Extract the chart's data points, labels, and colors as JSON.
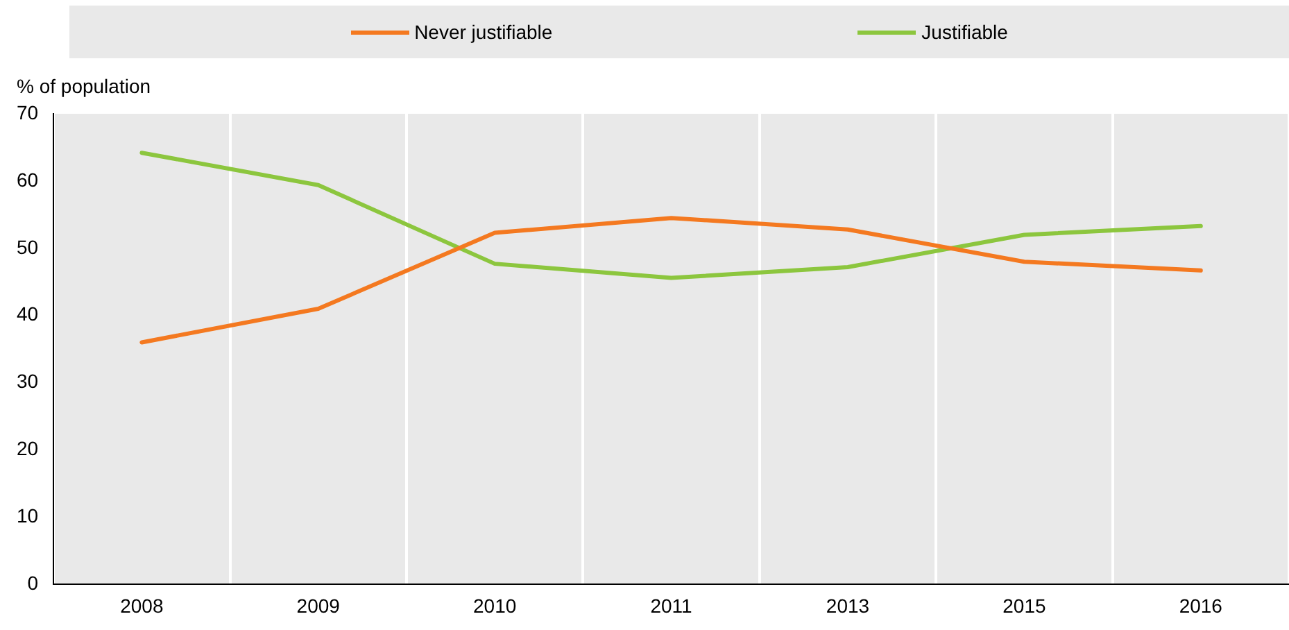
{
  "chart_data": {
    "type": "line",
    "ylabel": "% of population",
    "categories": [
      "2008",
      "2009",
      "2010",
      "2011",
      "2013",
      "2015",
      "2016"
    ],
    "series": [
      {
        "name": "Never justifiable",
        "color": "#f47920",
        "values": [
          36,
          41,
          52.3,
          54.5,
          52.8,
          48,
          46.7
        ]
      },
      {
        "name": "Justifiable",
        "color": "#8cc63e",
        "values": [
          64.2,
          59.4,
          47.7,
          45.6,
          47.2,
          52,
          53.3
        ]
      }
    ],
    "ylim": [
      0,
      70
    ],
    "yticks": [
      0,
      10,
      20,
      30,
      40,
      50,
      60,
      70
    ],
    "grid": "x",
    "legend": "top",
    "marker": "none",
    "line_style": "solid"
  }
}
